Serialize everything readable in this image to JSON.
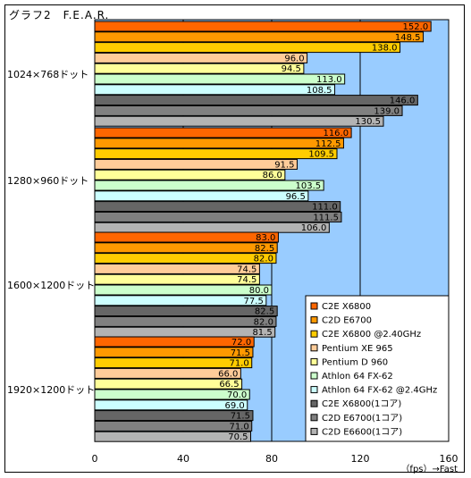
{
  "chart_data": {
    "type": "bar",
    "orientation": "horizontal",
    "title": "グラフ2　F.E.A.R.",
    "categories": [
      "1024×768ドット",
      "1280×960ドット",
      "1600×1200ドット",
      "1920×1200ドット"
    ],
    "series": [
      {
        "name": "C2E X6800",
        "color": "#ff6600",
        "values": [
          152.0,
          116.0,
          83.0,
          72.0
        ]
      },
      {
        "name": "C2D E6700",
        "color": "#ff9900",
        "values": [
          148.5,
          112.5,
          82.5,
          71.5
        ]
      },
      {
        "name": "C2E X6800 @2.40GHz",
        "color": "#ffcc00",
        "values": [
          138.0,
          109.5,
          82.0,
          71.0
        ]
      },
      {
        "name": "Pentium XE 965",
        "color": "#ffcc99",
        "values": [
          96.0,
          91.5,
          74.5,
          66.0
        ]
      },
      {
        "name": "Pentium D 960",
        "color": "#ffff99",
        "values": [
          94.5,
          86.0,
          74.5,
          66.5
        ]
      },
      {
        "name": "Athlon 64 FX-62",
        "color": "#ccffcc",
        "values": [
          113.0,
          103.5,
          80.0,
          70.0
        ]
      },
      {
        "name": "Athlon 64 FX-62 @2.4GHz",
        "color": "#ccffff",
        "values": [
          108.5,
          96.5,
          77.5,
          69.0
        ]
      },
      {
        "name": "C2E X6800(1コア)",
        "color": "#666666",
        "values": [
          146.0,
          111.0,
          82.5,
          71.5
        ]
      },
      {
        "name": "C2D E6700(1コア)",
        "color": "#808080",
        "values": [
          139.0,
          111.5,
          82.0,
          71.0
        ]
      },
      {
        "name": "C2D E6600(1コア)",
        "color": "#b3b3b3",
        "values": [
          130.5,
          106.0,
          81.5,
          70.5
        ]
      }
    ],
    "value_labels": [
      [
        "152.0",
        "148.5",
        "138.0",
        "96.0",
        "94.5",
        "113.0",
        "108.5",
        "146.0",
        "139.0",
        "130.5"
      ],
      [
        "116.0",
        "112.5",
        "109.5",
        "91.5",
        "86.0",
        "103.5",
        "96.5",
        "111.0",
        "111.5",
        "106.0"
      ],
      [
        "83.0",
        "82.5",
        "82.0",
        "74.5",
        "74.5",
        "80.0",
        "77.5",
        "82.5",
        "82.0",
        "81.5"
      ],
      [
        "72.0",
        "71.5",
        "71.0",
        "66.0",
        "66.5",
        "70.0",
        "69.0",
        "71.5",
        "71.0",
        "70.5"
      ]
    ],
    "xlim": [
      0,
      160
    ],
    "xticks": [
      "0",
      "40",
      "80",
      "120",
      "160"
    ],
    "xlabel": "（fps）→Fast",
    "grid": true,
    "plot_background": "#99ccff",
    "legend_position": "bottom-right"
  }
}
